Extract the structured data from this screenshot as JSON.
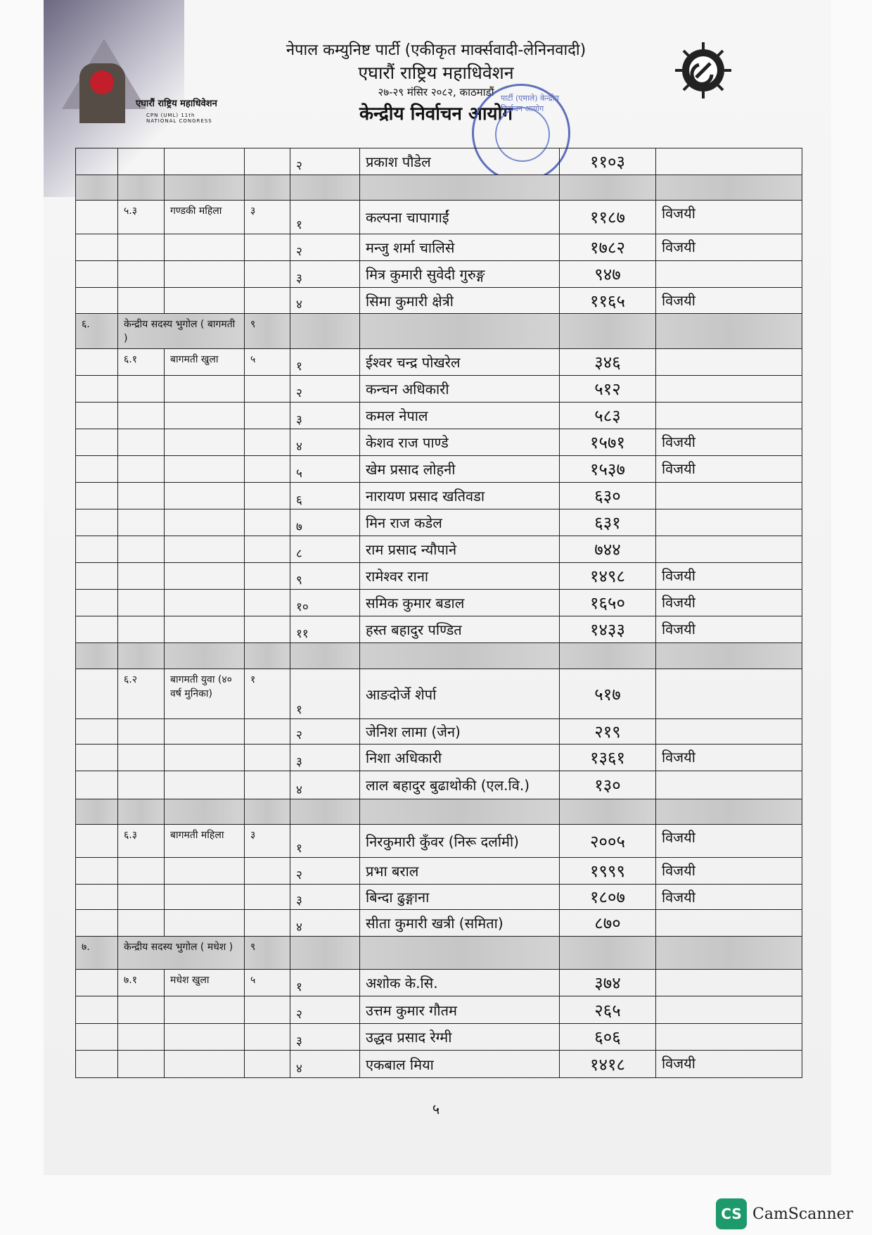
{
  "header": {
    "party": "नेपाल कम्युनिष्ट पार्टी (एकीकृत मार्क्सवादी-लेनिनवादी)",
    "event": "एघारौं राष्ट्रिय महाधिवेशन",
    "date_place": "२७-२९ मंसिर २०८२, काठमाडौं",
    "office": "केन्द्रीय निर्वाचन आयोग"
  },
  "logo_left": {
    "text": "एघारौं राष्ट्रिय महाधिवेशन",
    "subtext": "CPN (UML) 11th NATIONAL CONGRESS"
  },
  "stamp": {
    "text": "पार्टी (एमाले) केन्द्रीय निर्वाचन आयोग"
  },
  "accent_colors": {
    "stamp": "#3a4fae",
    "emblem": "#c21f2a",
    "camscanner": "#1d9a6c"
  },
  "rows": [
    {
      "sn": "",
      "code": "",
      "category": "",
      "seats": "",
      "no": "२",
      "name": "प्रकाश पौडेल",
      "votes": "११०३",
      "result": ""
    },
    {
      "gray": true
    },
    {
      "sn": "",
      "code": "५.३",
      "category": "गण्डकी महिला",
      "seats": "३",
      "no": "१",
      "name": "कल्पना चापागाईं",
      "votes": "११८७",
      "result": "विजयी"
    },
    {
      "no": "२",
      "name": "मन्जु शर्मा चालिसे",
      "votes": "१७८२",
      "result": "विजयी"
    },
    {
      "no": "३",
      "name": "मित्र कुमारी सुवेदी गुरुङ्ग",
      "votes": "९४७",
      "result": ""
    },
    {
      "no": "४",
      "name": "सिमा कुमारी क्षेत्री",
      "votes": "११६५",
      "result": "विजयी"
    },
    {
      "section": true,
      "sn": "६.",
      "category": "केन्द्रीय सदस्य भुगोल ( बागमती )",
      "seats": "९"
    },
    {
      "code": "६.१",
      "category": "बागमती खुला",
      "seats": "५",
      "no": "१",
      "name": "ईश्वर चन्द्र पोखरेल",
      "votes": "३४६",
      "result": ""
    },
    {
      "no": "२",
      "name": "कन्चन अधिकारी",
      "votes": "५१२",
      "result": ""
    },
    {
      "no": "३",
      "name": "कमल नेपाल",
      "votes": "५८३",
      "result": ""
    },
    {
      "no": "४",
      "name": "केशव राज पाण्डे",
      "votes": "१५७१",
      "result": "विजयी"
    },
    {
      "no": "५",
      "name": "खेम प्रसाद लोहनी",
      "votes": "१५३७",
      "result": "विजयी"
    },
    {
      "no": "६",
      "name": "नारायण प्रसाद खतिवडा",
      "votes": "६३०",
      "result": ""
    },
    {
      "no": "७",
      "name": "मिन राज कडेल",
      "votes": "६३१",
      "result": ""
    },
    {
      "no": "८",
      "name": "राम प्रसाद न्यौपाने",
      "votes": "७४४",
      "result": ""
    },
    {
      "no": "९",
      "name": "रामेश्वर राना",
      "votes": "१४९८",
      "result": "विजयी"
    },
    {
      "no": "१०",
      "name": "समिक कुमार बडाल",
      "votes": "१६५०",
      "result": "विजयी"
    },
    {
      "no": "११",
      "name": "हस्त बहादुर पण्डित",
      "votes": "१४३३",
      "result": "विजयी"
    },
    {
      "gray": true
    },
    {
      "code": "६.२",
      "category": "बागमती युवा (४० वर्ष मुनिका)",
      "seats": "१",
      "no": "१",
      "name": "आङदोर्जे शेर्पा",
      "votes": "५१७",
      "result": ""
    },
    {
      "no": "२",
      "name": "जेनिश लामा (जेन)",
      "votes": "२१९",
      "result": ""
    },
    {
      "no": "३",
      "name": "निशा अधिकारी",
      "votes": "१३६१",
      "result": "विजयी"
    },
    {
      "no": "४",
      "name": "लाल बहादुर बुढाथोकी (एल.वि.)",
      "votes": "१३०",
      "result": ""
    },
    {
      "gray": true
    },
    {
      "code": "६.३",
      "category": "बागमती महिला",
      "seats": "३",
      "no": "१",
      "name": "निरकुमारी कुँवर (निरू दर्लामी)",
      "votes": "२००५",
      "result": "विजयी"
    },
    {
      "no": "२",
      "name": "प्रभा बराल",
      "votes": "१९९९",
      "result": "विजयी"
    },
    {
      "no": "३",
      "name": "बिन्दा ढुङ्गाना",
      "votes": "१८०७",
      "result": "विजयी"
    },
    {
      "no": "४",
      "name": "सीता कुमारी खत्री (समिता)",
      "votes": "८७०",
      "result": ""
    },
    {
      "section": true,
      "sn": "७.",
      "category": "केन्द्रीय सदस्य भुगोल ( मधेश )",
      "seats": "९"
    },
    {
      "code": "७.१",
      "category": "मधेश खुला",
      "seats": "५",
      "no": "१",
      "name": "अशोक के.सि.",
      "votes": "३७४",
      "result": ""
    },
    {
      "no": "२",
      "name": "उत्तम कुमार गौतम",
      "votes": "२६५",
      "result": ""
    },
    {
      "no": "३",
      "name": "उद्धव प्रसाद रेग्मी",
      "votes": "६०६",
      "result": ""
    },
    {
      "no": "४",
      "name": "एकबाल मिया",
      "votes": "१४१८",
      "result": "विजयी"
    }
  ],
  "page_number": "५",
  "watermark": {
    "badge": "CS",
    "label": "CamScanner"
  }
}
